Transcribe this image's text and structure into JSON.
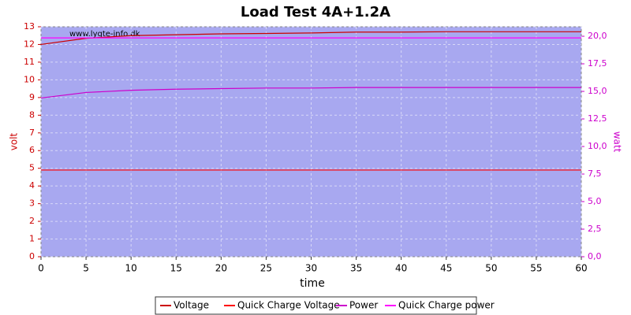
{
  "chart_data": {
    "type": "line",
    "title": "Load Test 4A+1.2A",
    "watermark": "www.lygte-info.dk",
    "xlabel": "time",
    "ylabel": "volt",
    "y2label": "watt",
    "x": [
      0,
      5,
      10,
      15,
      20,
      25,
      30,
      35,
      40,
      45,
      50,
      55,
      60
    ],
    "xlim": [
      0,
      60
    ],
    "xticks": [
      0,
      5,
      10,
      15,
      20,
      25,
      30,
      35,
      40,
      45,
      50,
      55,
      60
    ],
    "ylim": [
      0,
      13
    ],
    "yticks": [
      0,
      1,
      2,
      3,
      4,
      5,
      6,
      7,
      8,
      9,
      10,
      11,
      12,
      13
    ],
    "y2lim": [
      0,
      20.86
    ],
    "y2ticks": [
      {
        "value": 0,
        "label": "0,0"
      },
      {
        "value": 2.5,
        "label": "2,5"
      },
      {
        "value": 5,
        "label": "5,0"
      },
      {
        "value": 7.5,
        "label": "7,5"
      },
      {
        "value": 10,
        "label": "10,0"
      },
      {
        "value": 12.5,
        "label": "12,5"
      },
      {
        "value": 15,
        "label": "15,0"
      },
      {
        "value": 17.5,
        "label": "17,5"
      },
      {
        "value": 20,
        "label": "20,0"
      }
    ],
    "grid": true,
    "series": [
      {
        "name": "Voltage",
        "color": "#cc0000",
        "values": [
          12.0,
          12.35,
          12.5,
          12.55,
          12.6,
          12.62,
          12.65,
          12.7,
          12.7,
          12.72,
          12.72,
          12.72,
          12.72
        ]
      },
      {
        "name": "Quick Charge Voltage",
        "color": "#ff0000",
        "values": [
          4.9,
          4.9,
          4.9,
          4.9,
          4.9,
          4.9,
          4.9,
          4.9,
          4.9,
          4.9,
          4.9,
          4.9,
          4.9
        ]
      },
      {
        "name": "Power",
        "color": "#cc00cc",
        "axis": "y2",
        "values": [
          14.4,
          14.9,
          15.1,
          15.2,
          15.25,
          15.3,
          15.3,
          15.35,
          15.35,
          15.35,
          15.35,
          15.35,
          15.35
        ]
      },
      {
        "name": "Quick Charge power",
        "color": "#ff00ff",
        "axis": "y2",
        "values": [
          19.85,
          19.85,
          19.85,
          19.85,
          19.85,
          19.85,
          19.85,
          19.85,
          19.85,
          19.85,
          19.85,
          19.85,
          19.85
        ]
      }
    ]
  }
}
